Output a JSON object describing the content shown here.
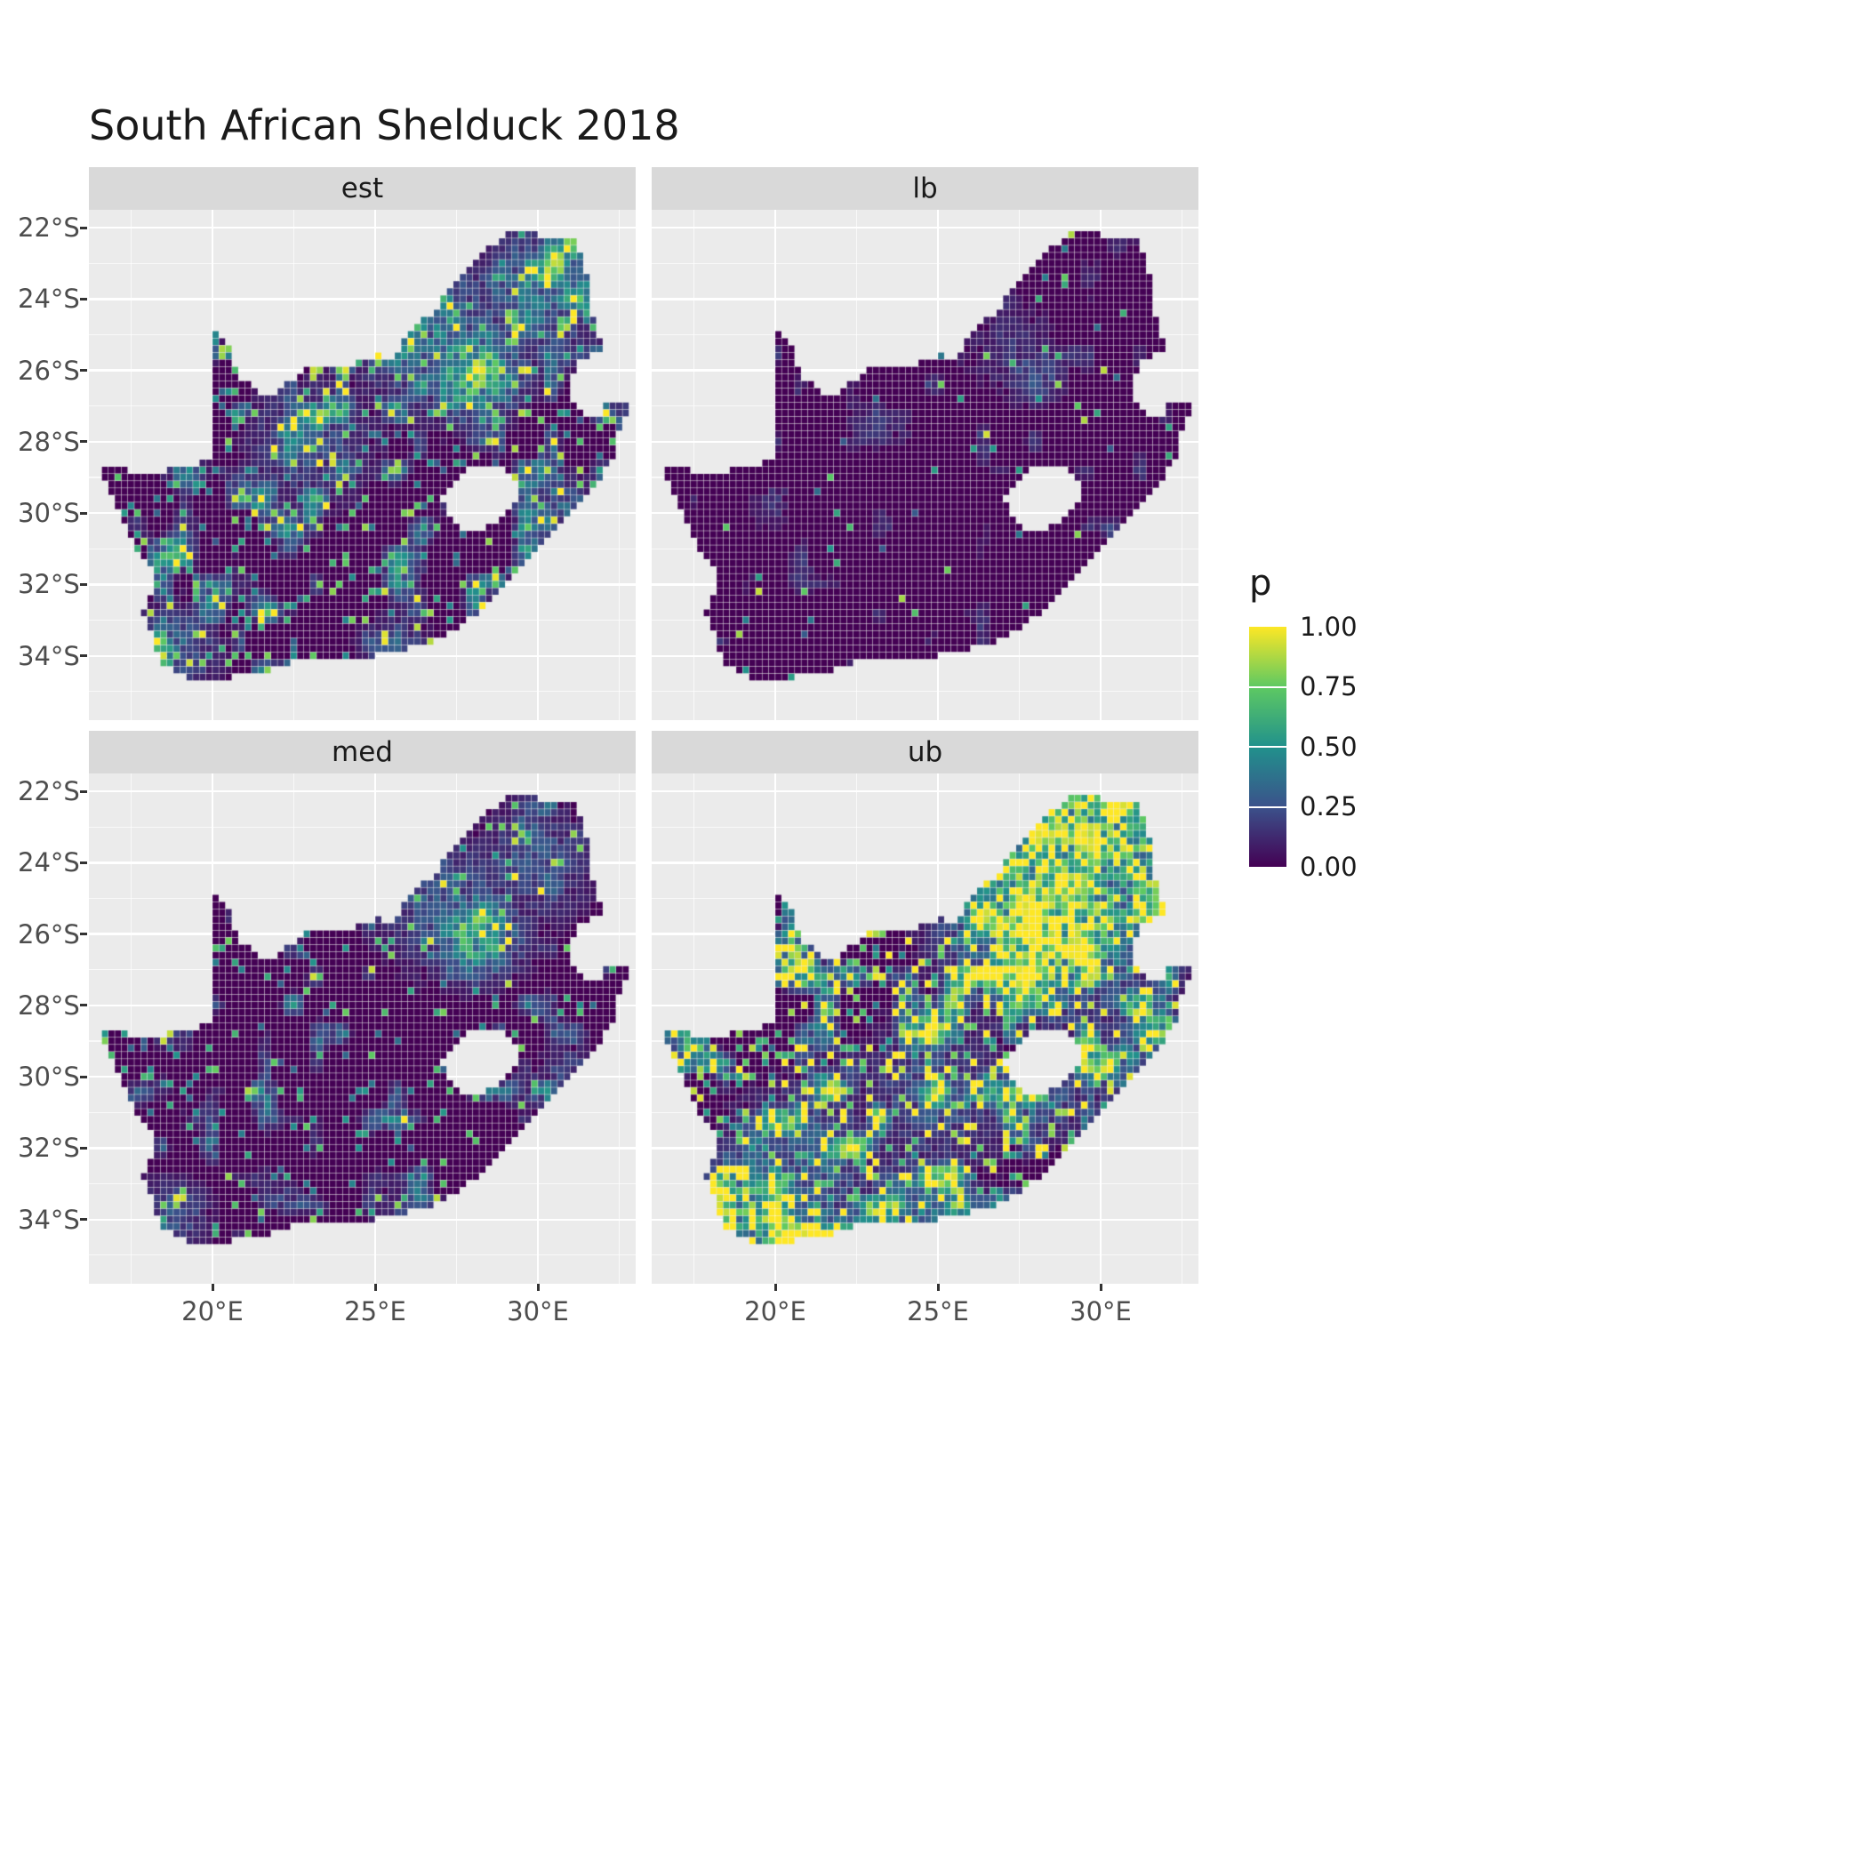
{
  "chart_data": {
    "type": "heatmap",
    "title": "South African Shelduck 2018",
    "region": "South Africa",
    "facet_labels": [
      "est",
      "lb",
      "med",
      "ub"
    ],
    "x_axis": {
      "tick_labels": [
        "20°E",
        "25°E",
        "30°E"
      ],
      "tick_values": [
        20,
        25,
        30
      ],
      "minor_values": [
        17.5,
        22.5,
        27.5,
        32.5
      ],
      "range_lon": [
        16.2,
        33.0
      ]
    },
    "y_axis": {
      "tick_labels": [
        "22°S",
        "24°S",
        "26°S",
        "28°S",
        "30°S",
        "32°S",
        "34°S"
      ],
      "tick_values": [
        22,
        24,
        26,
        28,
        30,
        32,
        34
      ],
      "minor_values": [
        23,
        25,
        27,
        29,
        31,
        33,
        35
      ],
      "range_lat_south": [
        21.5,
        35.8
      ]
    },
    "legend": {
      "title": "p",
      "tick_labels": [
        "1.00",
        "0.75",
        "0.50",
        "0.25",
        "0.00"
      ],
      "tick_values": [
        1.0,
        0.75,
        0.5,
        0.25,
        0.0
      ],
      "colormap": "viridis",
      "stops": [
        {
          "pos": 0.0,
          "color": [
            68,
            1,
            84
          ]
        },
        {
          "pos": 0.25,
          "color": [
            59,
            82,
            139
          ]
        },
        {
          "pos": 0.5,
          "color": [
            33,
            145,
            140
          ]
        },
        {
          "pos": 0.75,
          "color": [
            94,
            201,
            98
          ]
        },
        {
          "pos": 1.0,
          "color": [
            253,
            231,
            37
          ]
        }
      ]
    },
    "theme": {
      "panel_background": "#EBEBEB",
      "strip_background": "#D9D9D9",
      "grid_color": "#FFFFFF",
      "axis_text_color": "#4D4D4D",
      "title_color": "#1A1A1A",
      "zero_cell_color": "#440154"
    },
    "facets": [
      {
        "label": "est",
        "seed": 11,
        "speckle_rate": 0.12,
        "speckle_amp": 0.85,
        "corr_threshold": 0.58,
        "corr_amp": 0.8,
        "hotspots": [
          {
            "lon": 28.1,
            "lat": 26.0,
            "sigma": 0.85,
            "s": 1.0
          },
          {
            "lon": 27.6,
            "lat": 26.7,
            "sigma": 0.5,
            "s": 0.8
          },
          {
            "lon": 26.7,
            "lat": 24.9,
            "sigma": 1.5,
            "s": 0.5
          },
          {
            "lon": 29.9,
            "lat": 23.9,
            "sigma": 1.3,
            "s": 0.5
          },
          {
            "lon": 30.8,
            "lat": 22.7,
            "sigma": 0.7,
            "s": 0.55
          },
          {
            "lon": 18.8,
            "lat": 33.8,
            "sigma": 0.8,
            "s": 0.5
          },
          {
            "lon": 25.6,
            "lat": 33.8,
            "sigma": 0.6,
            "s": 0.4
          },
          {
            "lon": 30.9,
            "lat": 29.8,
            "sigma": 0.6,
            "s": 0.4
          },
          {
            "lon": 23.0,
            "lat": 28.0,
            "sigma": 1.2,
            "s": 0.35
          }
        ]
      },
      {
        "label": "lb",
        "seed": 22,
        "speckle_rate": 0.022,
        "speckle_amp": 0.9,
        "corr_threshold": 0.72,
        "corr_amp": 0.3,
        "hotspots": [
          {
            "lon": 28.0,
            "lat": 26.1,
            "sigma": 0.6,
            "s": 0.35
          },
          {
            "lon": 27.3,
            "lat": 25.4,
            "sigma": 0.9,
            "s": 0.2
          }
        ]
      },
      {
        "label": "med",
        "seed": 33,
        "speckle_rate": 0.07,
        "speckle_amp": 0.8,
        "corr_threshold": 0.62,
        "corr_amp": 0.65,
        "hotspots": [
          {
            "lon": 28.1,
            "lat": 26.0,
            "sigma": 0.8,
            "s": 0.95
          },
          {
            "lon": 27.2,
            "lat": 25.2,
            "sigma": 1.3,
            "s": 0.4
          },
          {
            "lon": 29.9,
            "lat": 24.0,
            "sigma": 1.1,
            "s": 0.35
          },
          {
            "lon": 18.8,
            "lat": 33.8,
            "sigma": 0.7,
            "s": 0.35
          },
          {
            "lon": 25.6,
            "lat": 33.9,
            "sigma": 0.5,
            "s": 0.3
          },
          {
            "lon": 30.9,
            "lat": 29.8,
            "sigma": 0.5,
            "s": 0.3
          }
        ]
      },
      {
        "label": "ub",
        "seed": 44,
        "speckle_rate": 0.22,
        "speckle_amp": 1.0,
        "corr_threshold": 0.5,
        "corr_amp": 1.25,
        "hotspots": [
          {
            "lon": 28.4,
            "lat": 25.4,
            "sigma": 1.7,
            "s": 1.25
          },
          {
            "lon": 30.2,
            "lat": 23.2,
            "sigma": 1.4,
            "s": 1.0
          },
          {
            "lon": 29.2,
            "lat": 22.7,
            "sigma": 0.9,
            "s": 0.9
          },
          {
            "lon": 31.3,
            "lat": 24.6,
            "sigma": 1.0,
            "s": 0.8
          },
          {
            "lon": 19.2,
            "lat": 33.7,
            "sigma": 1.2,
            "s": 0.85
          },
          {
            "lon": 20.6,
            "lat": 34.3,
            "sigma": 0.9,
            "s": 0.8
          },
          {
            "lon": 24.3,
            "lat": 33.9,
            "sigma": 1.1,
            "s": 0.6
          },
          {
            "lon": 21.0,
            "lat": 32.3,
            "sigma": 1.4,
            "s": 0.45
          },
          {
            "lon": 28.0,
            "lat": 30.6,
            "sigma": 0.9,
            "s": 0.45
          },
          {
            "lon": 31.0,
            "lat": 29.6,
            "sigma": 0.9,
            "s": 0.55
          },
          {
            "lon": 25.0,
            "lat": 30.5,
            "sigma": 1.5,
            "s": 0.35
          }
        ]
      }
    ],
    "geometry": {
      "note": "lon east, lat given as degrees South (positive southward)",
      "south_africa_outer": [
        [
          16.45,
          28.6
        ],
        [
          17.25,
          28.78
        ],
        [
          18.2,
          28.88
        ],
        [
          19.2,
          28.72
        ],
        [
          19.98,
          28.42
        ],
        [
          19.98,
          24.77
        ],
        [
          20.45,
          25.15
        ],
        [
          20.68,
          25.8
        ],
        [
          20.9,
          26.2
        ],
        [
          21.6,
          26.85
        ],
        [
          22.2,
          26.4
        ],
        [
          22.9,
          26.0
        ],
        [
          23.7,
          25.85
        ],
        [
          24.6,
          25.78
        ],
        [
          25.1,
          25.58
        ],
        [
          25.55,
          25.65
        ],
        [
          25.9,
          25.15
        ],
        [
          26.2,
          24.7
        ],
        [
          26.85,
          24.35
        ],
        [
          27.2,
          23.7
        ],
        [
          27.85,
          23.15
        ],
        [
          28.35,
          22.65
        ],
        [
          29.05,
          22.15
        ],
        [
          29.65,
          22.12
        ],
        [
          30.3,
          22.3
        ],
        [
          31.1,
          22.35
        ],
        [
          31.3,
          22.7
        ],
        [
          31.55,
          23.45
        ],
        [
          31.55,
          24.35
        ],
        [
          31.85,
          24.8
        ],
        [
          31.98,
          25.45
        ],
        [
          31.35,
          25.7
        ],
        [
          30.95,
          26.25
        ],
        [
          31.1,
          26.85
        ],
        [
          31.45,
          27.2
        ],
        [
          31.97,
          27.31
        ],
        [
          32.12,
          26.85
        ],
        [
          32.89,
          26.86
        ],
        [
          32.55,
          27.6
        ],
        [
          32.3,
          28.5
        ],
        [
          31.75,
          29.25
        ],
        [
          31.05,
          29.9
        ],
        [
          30.3,
          30.7
        ],
        [
          29.45,
          31.65
        ],
        [
          28.6,
          32.4
        ],
        [
          27.9,
          33.0
        ],
        [
          27.0,
          33.55
        ],
        [
          26.1,
          33.8
        ],
        [
          25.65,
          33.98
        ],
        [
          25.0,
          34.0
        ],
        [
          24.2,
          34.1
        ],
        [
          23.4,
          34.1
        ],
        [
          22.55,
          34.15
        ],
        [
          21.8,
          34.4
        ],
        [
          20.95,
          34.45
        ],
        [
          20.0,
          34.82
        ],
        [
          19.3,
          34.62
        ],
        [
          18.8,
          34.35
        ],
        [
          18.45,
          34.2
        ],
        [
          18.3,
          33.9
        ],
        [
          18.05,
          33.2
        ],
        [
          17.85,
          32.8
        ],
        [
          18.25,
          32.1
        ],
        [
          18.2,
          31.7
        ],
        [
          17.55,
          30.8
        ],
        [
          17.1,
          30.0
        ],
        [
          16.85,
          29.3
        ]
      ],
      "lesotho_hole": [
        [
          27.05,
          29.6
        ],
        [
          27.4,
          29.1
        ],
        [
          27.75,
          28.85
        ],
        [
          28.35,
          28.62
        ],
        [
          28.95,
          28.72
        ],
        [
          29.35,
          29.05
        ],
        [
          29.45,
          29.35
        ],
        [
          29.15,
          29.95
        ],
        [
          28.7,
          30.25
        ],
        [
          28.1,
          30.55
        ],
        [
          27.55,
          30.4
        ],
        [
          27.2,
          30.05
        ]
      ]
    }
  }
}
